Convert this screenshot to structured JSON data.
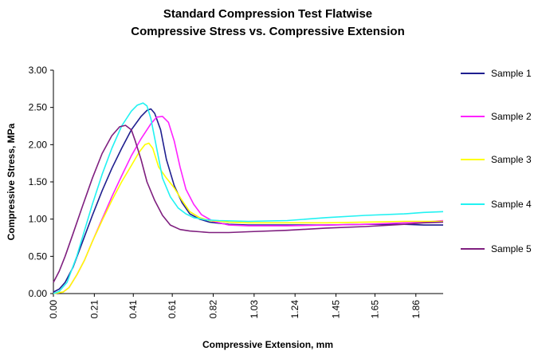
{
  "chart_data": {
    "type": "line",
    "title": "Standard Compression Test Flatwise",
    "subtitle": "Compressive Stress vs. Compressive Extension",
    "xlabel": "Compressive Extension, mm",
    "ylabel": "Compressive Stress, MPa",
    "xlim": [
      0,
      2.0
    ],
    "ylim": [
      0,
      3.0
    ],
    "x_ticks": [
      "0.00",
      "0.21",
      "0.41",
      "0.61",
      "0.82",
      "1.03",
      "1.24",
      "1.45",
      "1.65",
      "1.86"
    ],
    "y_ticks": [
      "0.00",
      "0.50",
      "1.00",
      "1.50",
      "2.00",
      "2.50",
      "3.00"
    ],
    "grid": false,
    "legend_position": "right",
    "series": [
      {
        "name": "Sample 1",
        "color": "#1f1f8f",
        "x": [
          0,
          0.03,
          0.06,
          0.1,
          0.15,
          0.2,
          0.25,
          0.3,
          0.35,
          0.4,
          0.45,
          0.48,
          0.5,
          0.52,
          0.55,
          0.58,
          0.62,
          0.66,
          0.7,
          0.75,
          0.8,
          0.9,
          1.0,
          1.2,
          1.4,
          1.6,
          1.8,
          1.9,
          2.0
        ],
        "y": [
          0.02,
          0.06,
          0.15,
          0.35,
          0.7,
          1.05,
          1.38,
          1.68,
          1.95,
          2.2,
          2.38,
          2.46,
          2.48,
          2.42,
          2.2,
          1.8,
          1.45,
          1.22,
          1.07,
          1.0,
          0.96,
          0.93,
          0.92,
          0.92,
          0.92,
          0.93,
          0.93,
          0.92,
          0.92
        ]
      },
      {
        "name": "Sample 2",
        "color": "#ff22ff",
        "x": [
          0,
          0.05,
          0.08,
          0.12,
          0.16,
          0.2,
          0.25,
          0.3,
          0.35,
          0.4,
          0.45,
          0.5,
          0.53,
          0.56,
          0.59,
          0.62,
          0.65,
          0.68,
          0.72,
          0.76,
          0.82,
          0.9,
          1.0,
          1.2,
          1.4,
          1.6,
          1.8,
          1.9,
          2.0
        ],
        "y": [
          0.0,
          0.02,
          0.08,
          0.25,
          0.45,
          0.7,
          1.0,
          1.3,
          1.58,
          1.85,
          2.08,
          2.28,
          2.37,
          2.38,
          2.3,
          2.05,
          1.7,
          1.4,
          1.2,
          1.06,
          0.97,
          0.92,
          0.91,
          0.91,
          0.92,
          0.93,
          0.95,
          0.96,
          0.98
        ]
      },
      {
        "name": "Sample 3",
        "color": "#ffff00",
        "x": [
          0,
          0.05,
          0.08,
          0.12,
          0.16,
          0.2,
          0.25,
          0.3,
          0.35,
          0.4,
          0.44,
          0.47,
          0.49,
          0.51,
          0.54,
          0.58,
          0.62,
          0.66,
          0.7,
          0.75,
          0.8,
          0.9,
          1.0,
          1.2,
          1.4,
          1.6,
          1.8,
          1.9,
          2.0
        ],
        "y": [
          0.0,
          0.02,
          0.08,
          0.25,
          0.45,
          0.7,
          0.98,
          1.25,
          1.5,
          1.72,
          1.9,
          2.0,
          2.02,
          1.95,
          1.7,
          1.55,
          1.42,
          1.25,
          1.1,
          1.02,
          0.98,
          0.96,
          0.95,
          0.95,
          0.95,
          0.96,
          0.97,
          0.97,
          0.97
        ]
      },
      {
        "name": "Sample 4",
        "color": "#22f2f2",
        "x": [
          0,
          0.03,
          0.07,
          0.12,
          0.16,
          0.2,
          0.25,
          0.3,
          0.35,
          0.4,
          0.43,
          0.46,
          0.48,
          0.5,
          0.53,
          0.56,
          0.6,
          0.64,
          0.68,
          0.72,
          0.78,
          0.85,
          1.0,
          1.2,
          1.4,
          1.6,
          1.8,
          1.9,
          2.0
        ],
        "y": [
          0.0,
          0.03,
          0.15,
          0.5,
          0.85,
          1.2,
          1.6,
          1.95,
          2.25,
          2.45,
          2.53,
          2.56,
          2.52,
          2.35,
          1.95,
          1.55,
          1.3,
          1.15,
          1.07,
          1.02,
          0.99,
          0.98,
          0.97,
          0.98,
          1.02,
          1.05,
          1.07,
          1.09,
          1.1
        ]
      },
      {
        "name": "Sample 5",
        "color": "#7f1f7f",
        "x": [
          0,
          0.03,
          0.06,
          0.1,
          0.15,
          0.2,
          0.25,
          0.3,
          0.34,
          0.37,
          0.4,
          0.42,
          0.45,
          0.48,
          0.52,
          0.56,
          0.6,
          0.65,
          0.7,
          0.75,
          0.8,
          0.9,
          1.0,
          1.2,
          1.4,
          1.6,
          1.8,
          1.9,
          2.0
        ],
        "y": [
          0.15,
          0.3,
          0.5,
          0.8,
          1.18,
          1.55,
          1.88,
          2.12,
          2.24,
          2.26,
          2.2,
          2.05,
          1.8,
          1.5,
          1.25,
          1.05,
          0.92,
          0.86,
          0.84,
          0.83,
          0.82,
          0.82,
          0.83,
          0.85,
          0.88,
          0.9,
          0.93,
          0.95,
          0.96
        ]
      }
    ]
  }
}
